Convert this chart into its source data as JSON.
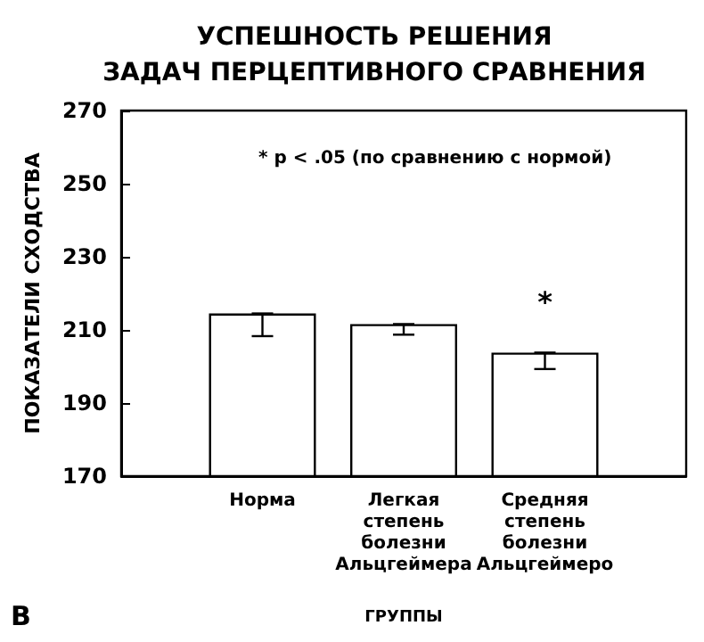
{
  "chart_data": {
    "type": "bar",
    "title": "УСПЕШНОСТЬ РЕШЕНИЯ\nЗАДАЧ ПЕРЦЕПТИВНОГО СРАВНЕНИЯ",
    "xlabel": "ГРУППЫ",
    "ylabel": "ПОКАЗАТЕЛИ СХОДСТВА",
    "categories": [
      "Норма",
      "Легкая\nстепень\nболезни\nАльцгеймера",
      "Средняя\nстепень\nболезни\nАльцгеймеро"
    ],
    "values": [
      214.5,
      211.6,
      203.8
    ],
    "errors": [
      [
        208.3,
        214.5
      ],
      [
        208.7,
        211.6
      ],
      [
        199.3,
        203.8
      ]
    ],
    "color": "#ffffff",
    "ylim": [
      170,
      270
    ],
    "yticks": [
      170,
      190,
      210,
      230,
      250,
      270
    ],
    "grid": false,
    "annotations": [
      "* p < .05 (по сравнению с нормой)",
      "*",
      "B"
    ]
  }
}
